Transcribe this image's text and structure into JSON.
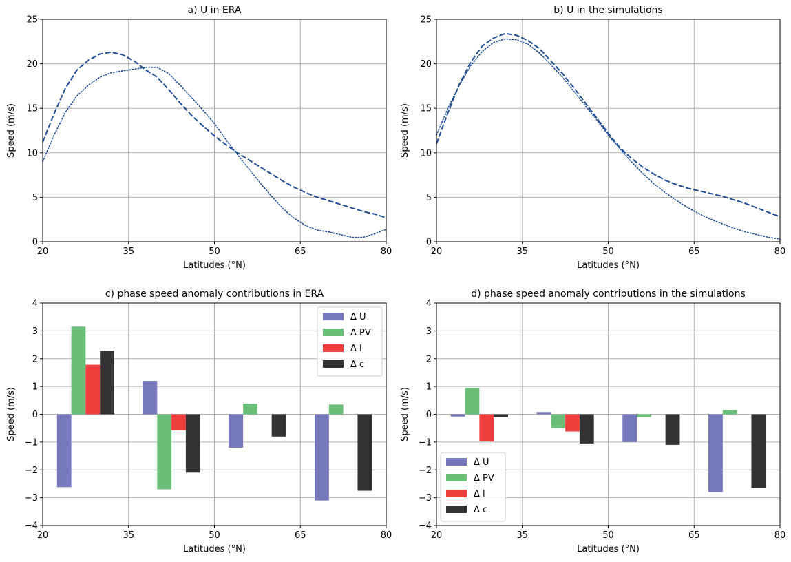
{
  "colors": {
    "line": "#1f4e99",
    "dU": "#7777bb",
    "dPV": "#6cbf78",
    "dl": "#ee3e3e",
    "dc": "#333333"
  },
  "chart_data": [
    {
      "panel": "a",
      "type": "line",
      "title": "a) U in ERA",
      "xlabel": "Latitudes (°N)",
      "ylabel": "Speed (m/s)",
      "xlim": [
        20,
        80
      ],
      "ylim": [
        0,
        25
      ],
      "xticks": [
        20,
        35,
        50,
        65,
        80
      ],
      "yticks": [
        0,
        5,
        10,
        15,
        20,
        25
      ],
      "grid": true,
      "series": [
        {
          "style": "dashed",
          "x": [
            20,
            22,
            24,
            26,
            28,
            30,
            32,
            34,
            36,
            38,
            40,
            42,
            44,
            46,
            48,
            50,
            52,
            54,
            56,
            58,
            60,
            62,
            64,
            66,
            68,
            70,
            72,
            74,
            76,
            78,
            80
          ],
          "y": [
            11.2,
            14.4,
            17.3,
            19.3,
            20.4,
            21.1,
            21.3,
            21.0,
            20.3,
            19.3,
            18.5,
            17.1,
            15.6,
            14.2,
            13.0,
            11.9,
            10.9,
            10.0,
            9.2,
            8.4,
            7.6,
            6.8,
            6.1,
            5.5,
            5.0,
            4.6,
            4.2,
            3.8,
            3.4,
            3.1,
            2.7
          ]
        },
        {
          "style": "dotted",
          "x": [
            20,
            22,
            24,
            26,
            28,
            30,
            32,
            34,
            36,
            38,
            40,
            42,
            44,
            46,
            48,
            50,
            52,
            54,
            56,
            58,
            60,
            62,
            64,
            66,
            68,
            70,
            72,
            74,
            76,
            78,
            80
          ],
          "y": [
            9.0,
            12.0,
            14.6,
            16.4,
            17.6,
            18.5,
            19.0,
            19.2,
            19.4,
            19.6,
            19.6,
            18.9,
            17.6,
            16.2,
            14.8,
            13.3,
            11.5,
            9.8,
            8.2,
            6.6,
            5.1,
            3.7,
            2.6,
            1.8,
            1.3,
            1.1,
            0.8,
            0.5,
            0.5,
            0.9,
            1.4
          ]
        }
      ]
    },
    {
      "panel": "b",
      "type": "line",
      "title": "b) U in the simulations",
      "xlabel": "Latitudes (°N)",
      "ylabel": "Speed (m/s)",
      "xlim": [
        20,
        80
      ],
      "ylim": [
        0,
        25
      ],
      "xticks": [
        20,
        35,
        50,
        65,
        80
      ],
      "yticks": [
        0,
        5,
        10,
        15,
        20,
        25
      ],
      "grid": true,
      "series": [
        {
          "style": "dashed",
          "x": [
            20,
            22,
            24,
            26,
            28,
            30,
            32,
            34,
            36,
            38,
            40,
            42,
            44,
            46,
            48,
            50,
            52,
            54,
            56,
            58,
            60,
            62,
            64,
            66,
            68,
            70,
            72,
            74,
            76,
            78,
            80
          ],
          "y": [
            11.0,
            14.5,
            17.7,
            20.2,
            22.0,
            22.9,
            23.4,
            23.2,
            22.6,
            21.7,
            20.3,
            18.9,
            17.3,
            15.6,
            13.9,
            12.2,
            10.6,
            9.4,
            8.4,
            7.6,
            6.9,
            6.4,
            6.0,
            5.7,
            5.4,
            5.1,
            4.7,
            4.3,
            3.8,
            3.3,
            2.8
          ]
        },
        {
          "style": "dotted",
          "x": [
            20,
            22,
            24,
            26,
            28,
            30,
            32,
            34,
            36,
            38,
            40,
            42,
            44,
            46,
            48,
            50,
            52,
            54,
            56,
            58,
            60,
            62,
            64,
            66,
            68,
            70,
            72,
            74,
            76,
            78,
            80
          ],
          "y": [
            12.0,
            15.0,
            17.6,
            19.8,
            21.4,
            22.4,
            22.8,
            22.7,
            22.2,
            21.2,
            19.9,
            18.5,
            16.9,
            15.3,
            13.7,
            12.0,
            10.5,
            9.0,
            7.7,
            6.5,
            5.5,
            4.6,
            3.8,
            3.1,
            2.5,
            2.0,
            1.5,
            1.1,
            0.8,
            0.5,
            0.3
          ]
        }
      ]
    },
    {
      "panel": "c",
      "type": "bar",
      "title": "c) phase speed anomaly contributions in ERA",
      "xlabel": "Latitudes (°N)",
      "ylabel": "Speed (m/s)",
      "xlim": [
        20,
        80
      ],
      "ylim": [
        -4,
        4
      ],
      "xticks": [
        20,
        35,
        50,
        65,
        80
      ],
      "yticks": [
        -4,
        -3,
        -2,
        -1,
        0,
        1,
        2,
        3,
        4
      ],
      "grid": true,
      "legend": "top-right",
      "group_centers": [
        27.5,
        42.5,
        57.5,
        72.5
      ],
      "series": [
        {
          "name": "Δ U",
          "color_key": "dU",
          "values": [
            -2.62,
            1.2,
            -1.2,
            -3.1
          ]
        },
        {
          "name": "Δ PV",
          "color_key": "dPV",
          "values": [
            3.15,
            -2.7,
            0.38,
            0.35
          ]
        },
        {
          "name": "Δ l",
          "color_key": "dl",
          "values": [
            1.78,
            -0.58,
            0,
            0
          ]
        },
        {
          "name": "Δ c",
          "color_key": "dc",
          "values": [
            2.28,
            -2.1,
            -0.8,
            -2.75
          ]
        }
      ]
    },
    {
      "panel": "d",
      "type": "bar",
      "title": "d) phase speed anomaly contributions in the simulations",
      "xlabel": "Latitudes (°N)",
      "ylabel": "Speed (m/s)",
      "xlim": [
        20,
        80
      ],
      "ylim": [
        -4,
        4
      ],
      "xticks": [
        20,
        35,
        50,
        65,
        80
      ],
      "yticks": [
        -4,
        -3,
        -2,
        -1,
        0,
        1,
        2,
        3,
        4
      ],
      "grid": true,
      "legend": "bottom-left",
      "group_centers": [
        27.5,
        42.5,
        57.5,
        72.5
      ],
      "series": [
        {
          "name": "Δ U",
          "color_key": "dU",
          "values": [
            -0.08,
            0.08,
            -1.0,
            -2.8
          ]
        },
        {
          "name": "Δ PV",
          "color_key": "dPV",
          "values": [
            0.95,
            -0.5,
            -0.1,
            0.15
          ]
        },
        {
          "name": "Δ l",
          "color_key": "dl",
          "values": [
            -0.98,
            -0.62,
            0,
            0
          ]
        },
        {
          "name": "Δ c",
          "color_key": "dc",
          "values": [
            -0.1,
            -1.05,
            -1.1,
            -2.65
          ]
        }
      ]
    }
  ]
}
